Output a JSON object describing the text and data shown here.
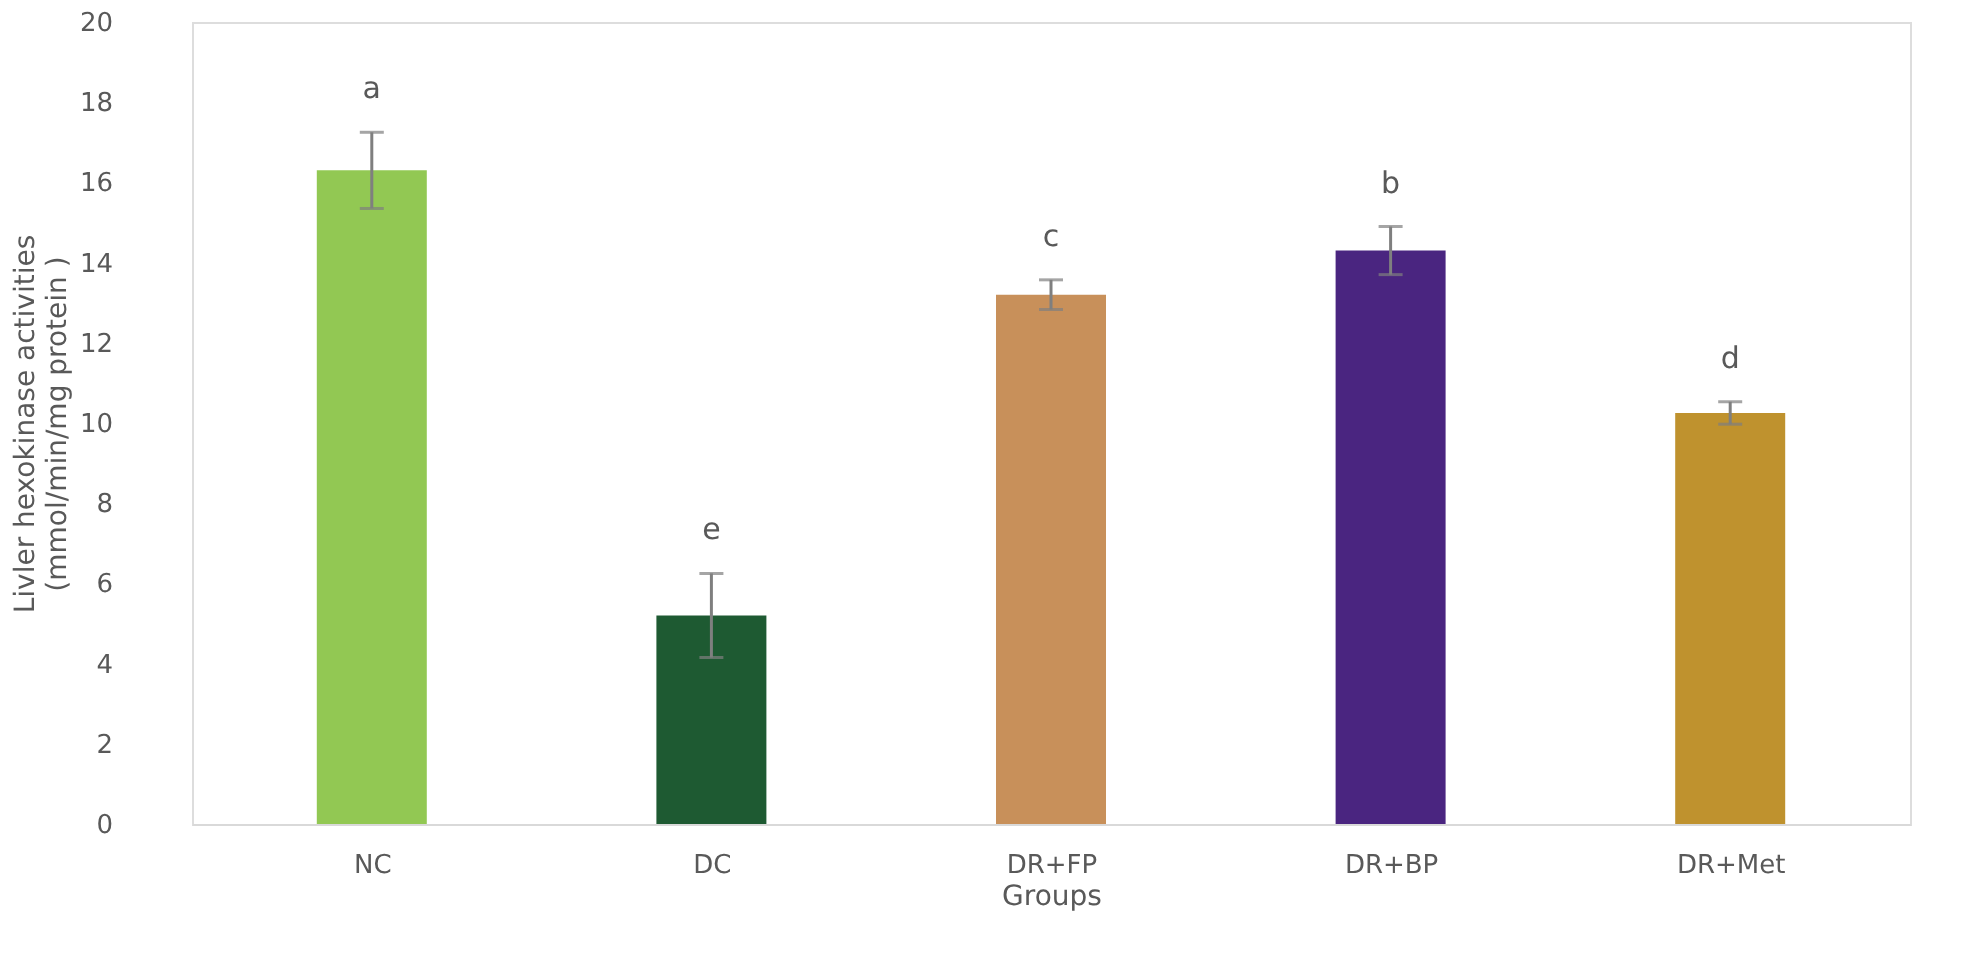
{
  "chart_data": {
    "type": "bar",
    "xlabel": "Groups",
    "ylabel": "Livler hexokinase activities\n(mmol/min/mg protein )",
    "categories": [
      "NC",
      "DC",
      "DR+FP",
      "DR+BP",
      "DR+Met"
    ],
    "values": [
      16.3,
      5.2,
      13.2,
      14.3,
      10.25
    ],
    "colors": [
      "#92c853",
      "#1e5a32",
      "#c8905a",
      "#4a2580",
      "#bf922e"
    ],
    "errors": [
      0.95,
      1.05,
      0.37,
      0.6,
      0.28
    ],
    "ylim": [
      0,
      20
    ],
    "yticks": [
      0,
      2,
      4,
      6,
      8,
      10,
      12,
      14,
      16,
      18,
      20
    ],
    "grid": false,
    "annotations": [
      "a",
      "e",
      "c",
      "b",
      "d"
    ]
  }
}
